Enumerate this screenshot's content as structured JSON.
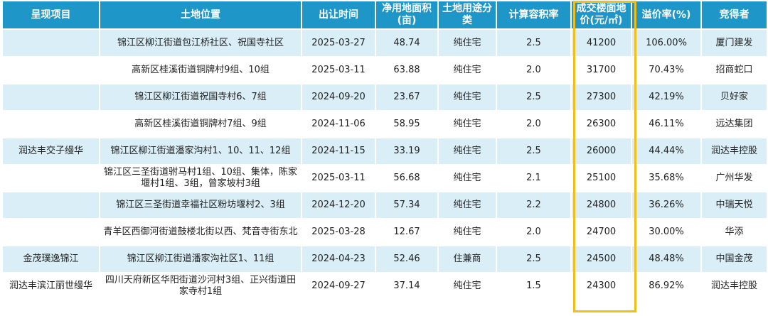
{
  "table": {
    "headers": [
      "呈现项目",
      "土地位置",
      "出让时间",
      "净用地面积(亩)",
      "土地用途分类",
      "计算容积率",
      "成交楼面地价(元/㎡)",
      "溢价率(%)",
      "竞得者"
    ],
    "rows": [
      [
        "",
        "锦江区柳江街道包江桥社区、祝国寺社区",
        "2025-03-27",
        "48.74",
        "纯住宅",
        "2.5",
        "41200",
        "106.00%",
        "厦门建发"
      ],
      [
        "",
        "高新区桂溪街道铜牌村9组、10组",
        "2025-03-11",
        "63.88",
        "纯住宅",
        "2.0",
        "31700",
        "70.43%",
        "招商蛇口"
      ],
      [
        "",
        "锦江区柳江街道祝国寺村6、7组",
        "2024-09-20",
        "23.67",
        "纯住宅",
        "2.5",
        "27300",
        "42.19%",
        "贝好家"
      ],
      [
        "",
        "高新区桂溪街道铜牌村7组、9组",
        "2024-11-06",
        "58.95",
        "纯住宅",
        "2.0",
        "26300",
        "46.11%",
        "远达集团"
      ],
      [
        "润达丰交子缦华",
        "锦江区柳江街道潘家沟村1、10、11、12组",
        "2024-11-15",
        "33.19",
        "纯住宅",
        "2.5",
        "26000",
        "44.44%",
        "润达丰控股"
      ],
      [
        "",
        "锦江区三圣街道驸马村1组、10组、集体，陈家堰村1组、3组，曾家坡村3组",
        "2025-03-11",
        "56.68",
        "纯住宅",
        "2.1",
        "25100",
        "35.68%",
        "广州华发"
      ],
      [
        "",
        "锦江区三圣街道幸福社区粉坊堰村2、3组",
        "2024-12-20",
        "57.34",
        "纯住宅",
        "2.2",
        "24800",
        "36.26%",
        "中瑞天悦"
      ],
      [
        "",
        "青羊区西御河街道鼓楼北街以西、梵音寺街东北",
        "2025-03-28",
        "12.67",
        "纯住宅",
        "2.0",
        "24700",
        "30.00%",
        "华添"
      ],
      [
        "金茂璞逸锦江",
        "锦江区柳江街道潘家沟社区1、11组",
        "2024-04-23",
        "52.46",
        "住兼商",
        "2.5",
        "24500",
        "48.48%",
        "中国金茂"
      ],
      [
        "润达丰滨江丽世缦华",
        "四川天府新区华阳街道沙河村3组、正兴街道田家寺村1组",
        "2024-09-27",
        "37.14",
        "纯住宅",
        "1.5",
        "24300",
        "86.92%",
        "润达丰控股"
      ]
    ]
  },
  "colors": {
    "header_bg": "#1e96c8",
    "row_alt_bg": "#d9eef7",
    "highlight_border": "#f2be1a"
  }
}
